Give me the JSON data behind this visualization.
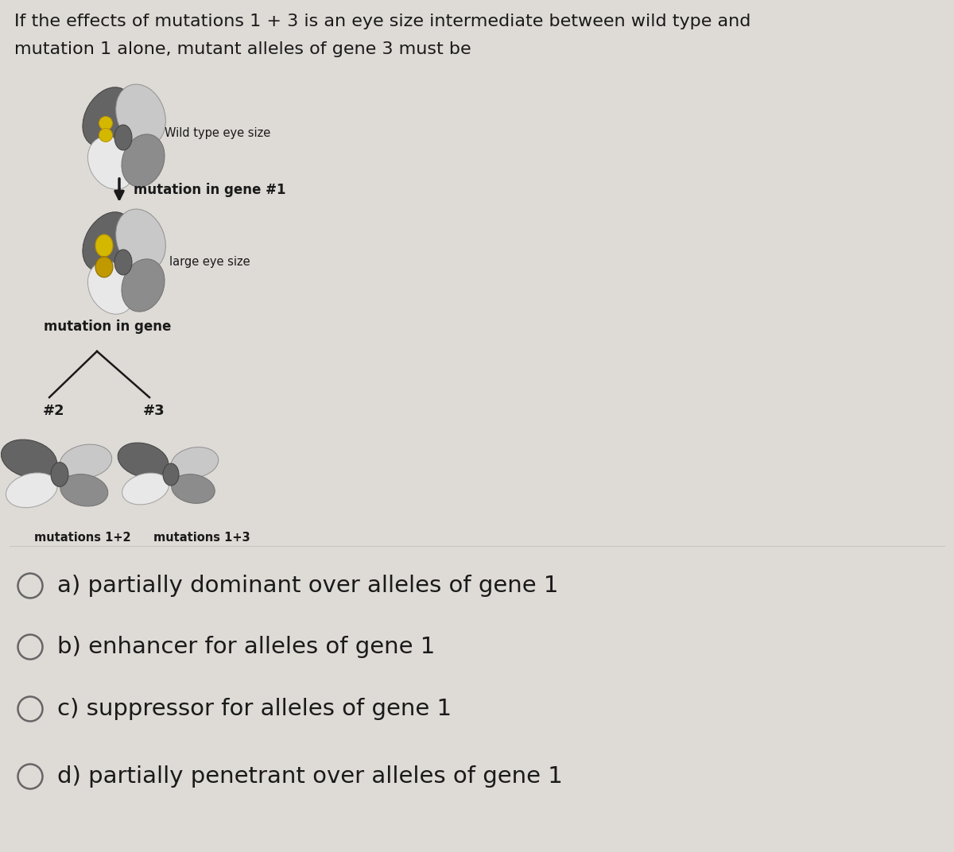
{
  "title_line1": "If the effects of mutations 1 + 3 is an eye size intermediate between wild type and",
  "title_line2": "mutation 1 alone, mutant alleles of gene 3 must be",
  "title_fontsize": 16,
  "bg_color": "#dedad6",
  "text_color": "#1a1a1a",
  "wild_type_label": "Wild type eye size",
  "large_eye_label": "large eye size",
  "gene1_arrow_label": "mutation in gene #1",
  "gene_branch_label": "mutation in gene",
  "gene2_label": "#2",
  "gene3_label": "#3",
  "mut12_label": "mutations 1+2",
  "mut13_label": "mutations 1+3",
  "choices": [
    "a) partially dominant over alleles of gene 1",
    "b) enhancer for alleles of gene 1",
    "c) suppressor for alleles of gene 1",
    "d) partially penetrant over alleles of gene 1"
  ],
  "choice_fontsize": 21,
  "dark_gray": "#646464",
  "mid_gray": "#8c8c8c",
  "light_gray": "#c8c8c8",
  "near_white": "#e8e8e8",
  "yellow_bright": "#d4b800",
  "yellow_dark": "#b89000",
  "arrow_color": "#1a1a1a"
}
